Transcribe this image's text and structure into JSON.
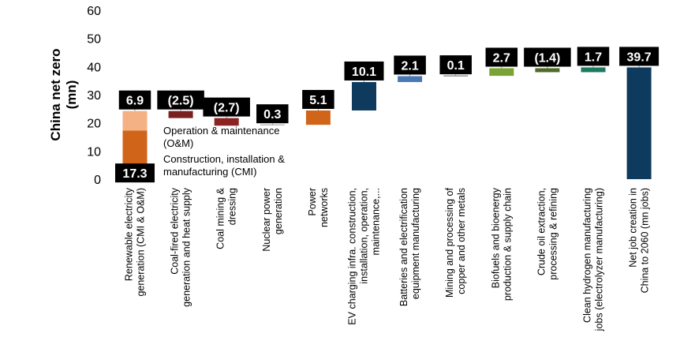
{
  "chart_data": {
    "type": "bar",
    "subtype": "waterfall",
    "title": "",
    "ylabel": "China net zero\n(mn)",
    "xlabel": "",
    "ylim": [
      0,
      60
    ],
    "yticks": [
      0,
      10,
      20,
      30,
      40,
      50,
      60
    ],
    "grid": false,
    "legend": "none",
    "annotations": [
      {
        "text": "Operation & maintenance\n(O&M)"
      },
      {
        "text": "Construction, installation &\nmanufacturing (CMI)"
      }
    ],
    "categories": [
      "Renewable electricity\ngeneration (CMI & O&M)",
      "Coal-fired electricity\ngeneration and heat supply",
      "Coal mining &\ndressing",
      "Nuclear power\ngeneration",
      "Power\nnetworks",
      "EV charging infra. construction,\ninstallation, operation,\nmaintenance,...",
      "Batteries and electrification\nequipment manufacturing",
      "Mining and processing of\ncopper and other metals",
      "Biofuels and bioenergy\nproduction & supply chain",
      "Crude oil extraction,\nprocessing & refining",
      "Clean hydrogen manufacturing\njobs (electrolyzer manufacturing)",
      "Net job creation in\nChina to 2060 (mn jobs)"
    ],
    "bars": [
      {
        "segments": [
          {
            "start": 0,
            "end": 17.3,
            "label": "17.3",
            "color": "#D0651A"
          },
          {
            "start": 17.3,
            "end": 24.2,
            "label": "6.9",
            "color": "#F4B183"
          }
        ]
      },
      {
        "segments": [
          {
            "start": 21.7,
            "end": 24.2,
            "label": "(2.5)",
            "color": "#7B2020"
          }
        ]
      },
      {
        "segments": [
          {
            "start": 19.0,
            "end": 21.7,
            "label": "(2.7)",
            "color": "#8B2323"
          }
        ]
      },
      {
        "segments": [
          {
            "start": 19.0,
            "end": 19.3,
            "label": "0.3",
            "color": "#A6A6A6"
          }
        ]
      },
      {
        "segments": [
          {
            "start": 19.3,
            "end": 24.4,
            "label": "5.1",
            "color": "#D0651A"
          }
        ]
      },
      {
        "segments": [
          {
            "start": 24.4,
            "end": 34.5,
            "label": "10.1",
            "color": "#0E3A5E"
          }
        ]
      },
      {
        "segments": [
          {
            "start": 34.5,
            "end": 36.6,
            "label": "2.1",
            "color": "#4A78B5"
          }
        ]
      },
      {
        "segments": [
          {
            "start": 36.6,
            "end": 36.7,
            "label": "0.1",
            "color": "#7F7F7F"
          }
        ]
      },
      {
        "segments": [
          {
            "start": 36.7,
            "end": 39.4,
            "label": "2.7",
            "color": "#7AA335"
          }
        ]
      },
      {
        "segments": [
          {
            "start": 38.0,
            "end": 39.4,
            "label": "(1.4)",
            "color": "#4F6B28"
          }
        ]
      },
      {
        "segments": [
          {
            "start": 38.0,
            "end": 39.7,
            "label": "1.7",
            "color": "#1E7A5E"
          }
        ]
      },
      {
        "segments": [
          {
            "start": 0,
            "end": 39.7,
            "label": "39.7",
            "color": "#0E3A5E"
          }
        ]
      }
    ]
  }
}
